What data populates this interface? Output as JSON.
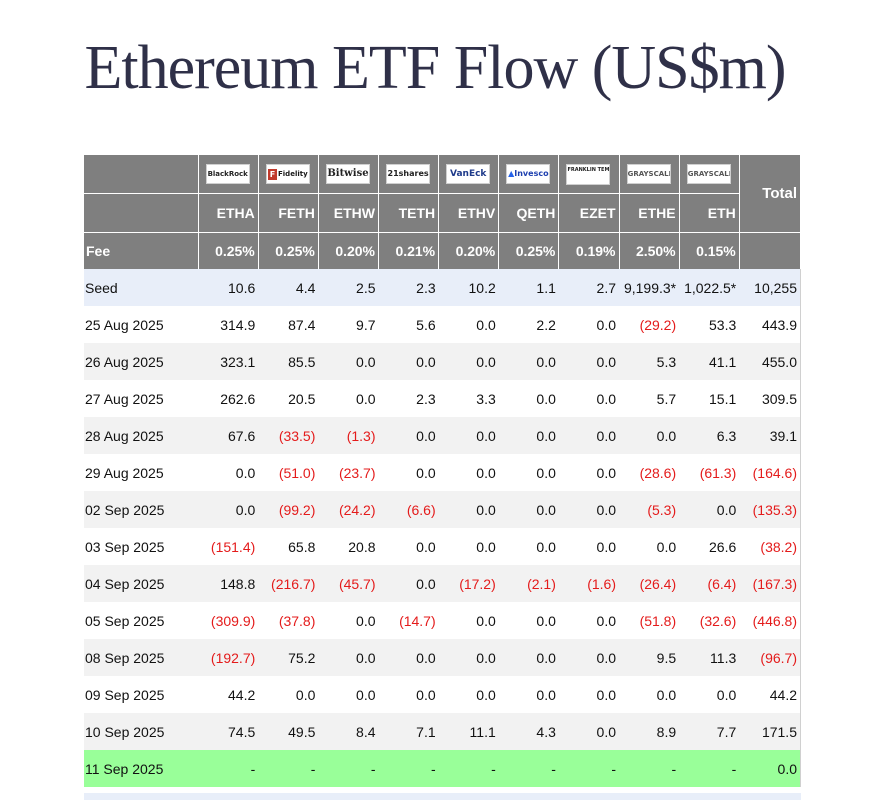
{
  "title": "Ethereum ETF Flow (US$m)",
  "header": {
    "fee_label": "Fee",
    "total_label": "Total",
    "funds": [
      {
        "logo": "BlackRock",
        "ticker": "ETHA",
        "fee": "0.25%"
      },
      {
        "logo": "Fidelity",
        "ticker": "FETH",
        "fee": "0.25%"
      },
      {
        "logo": "Bitwise",
        "ticker": "ETHW",
        "fee": "0.20%"
      },
      {
        "logo": "21shares",
        "ticker": "TETH",
        "fee": "0.21%"
      },
      {
        "logo": "VanEck",
        "ticker": "ETHV",
        "fee": "0.20%"
      },
      {
        "logo": "Invesco",
        "ticker": "QETH",
        "fee": "0.25%"
      },
      {
        "logo": "FRANKLIN TEMPLETON",
        "ticker": "EZET",
        "fee": "0.19%"
      },
      {
        "logo": "GRAYSCALE",
        "ticker": "ETHE",
        "fee": "2.50%"
      },
      {
        "logo": "GRAYSCALE",
        "ticker": "ETH",
        "fee": "0.15%"
      }
    ]
  },
  "rows": [
    {
      "date": "Seed",
      "values": [
        "10.6",
        "4.4",
        "2.5",
        "2.3",
        "10.2",
        "1.1",
        "2.7",
        "9,199.3*",
        "1,022.5*"
      ],
      "total": "10,255"
    },
    {
      "date": "25 Aug 2025",
      "values": [
        "314.9",
        "87.4",
        "9.7",
        "5.6",
        "0.0",
        "2.2",
        "0.0",
        "(29.2)",
        "53.3"
      ],
      "total": "443.9"
    },
    {
      "date": "26 Aug 2025",
      "values": [
        "323.1",
        "85.5",
        "0.0",
        "0.0",
        "0.0",
        "0.0",
        "0.0",
        "5.3",
        "41.1"
      ],
      "total": "455.0"
    },
    {
      "date": "27 Aug 2025",
      "values": [
        "262.6",
        "20.5",
        "0.0",
        "2.3",
        "3.3",
        "0.0",
        "0.0",
        "5.7",
        "15.1"
      ],
      "total": "309.5"
    },
    {
      "date": "28 Aug 2025",
      "values": [
        "67.6",
        "(33.5)",
        "(1.3)",
        "0.0",
        "0.0",
        "0.0",
        "0.0",
        "0.0",
        "6.3"
      ],
      "total": "39.1"
    },
    {
      "date": "29 Aug 2025",
      "values": [
        "0.0",
        "(51.0)",
        "(23.7)",
        "0.0",
        "0.0",
        "0.0",
        "0.0",
        "(28.6)",
        "(61.3)"
      ],
      "total": "(164.6)"
    },
    {
      "date": "02 Sep 2025",
      "values": [
        "0.0",
        "(99.2)",
        "(24.2)",
        "(6.6)",
        "0.0",
        "0.0",
        "0.0",
        "(5.3)",
        "0.0"
      ],
      "total": "(135.3)"
    },
    {
      "date": "03 Sep 2025",
      "values": [
        "(151.4)",
        "65.8",
        "20.8",
        "0.0",
        "0.0",
        "0.0",
        "0.0",
        "0.0",
        "26.6"
      ],
      "total": "(38.2)"
    },
    {
      "date": "04 Sep 2025",
      "values": [
        "148.8",
        "(216.7)",
        "(45.7)",
        "0.0",
        "(17.2)",
        "(2.1)",
        "(1.6)",
        "(26.4)",
        "(6.4)"
      ],
      "total": "(167.3)"
    },
    {
      "date": "05 Sep 2025",
      "values": [
        "(309.9)",
        "(37.8)",
        "0.0",
        "(14.7)",
        "0.0",
        "0.0",
        "0.0",
        "(51.8)",
        "(32.6)"
      ],
      "total": "(446.8)"
    },
    {
      "date": "08 Sep 2025",
      "values": [
        "(192.7)",
        "75.2",
        "0.0",
        "0.0",
        "0.0",
        "0.0",
        "0.0",
        "9.5",
        "11.3"
      ],
      "total": "(96.7)"
    },
    {
      "date": "09 Sep 2025",
      "values": [
        "44.2",
        "0.0",
        "0.0",
        "0.0",
        "0.0",
        "0.0",
        "0.0",
        "0.0",
        "0.0"
      ],
      "total": "44.2"
    },
    {
      "date": "10 Sep 2025",
      "values": [
        "74.5",
        "49.5",
        "8.4",
        "7.1",
        "11.1",
        "4.3",
        "0.0",
        "8.9",
        "7.7"
      ],
      "total": "171.5"
    },
    {
      "date": "11 Sep 2025",
      "values": [
        "-",
        "-",
        "-",
        "-",
        "-",
        "-",
        "-",
        "-",
        "-"
      ],
      "total": "0.0"
    }
  ],
  "colors": {
    "header_bg": "#7f7f7f",
    "seed_bg": "#e8eef9",
    "alt_bg": "#f2f2f2",
    "today_bg": "#99ff99",
    "negative": "#e41b1b",
    "title": "#2f3048"
  }
}
